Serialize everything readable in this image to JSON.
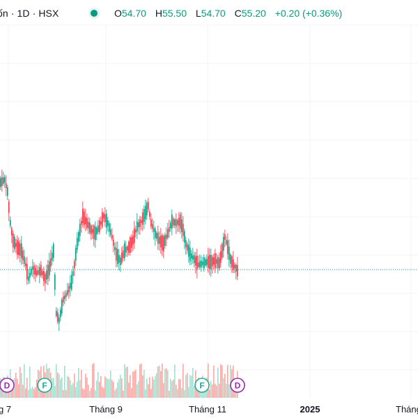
{
  "header": {
    "title": "ốn · 1D · HSX",
    "status_icon": "market-open-dot",
    "ohlc": {
      "o_key": "O",
      "o_val": "54.70",
      "h_key": "H",
      "h_val": "55.50",
      "l_key": "L",
      "l_val": "54.70",
      "c_key": "C",
      "c_val": "55.20",
      "change": "+0.20 (+0.36%)"
    }
  },
  "colors": {
    "up": "#089981",
    "down": "#f23645",
    "up_volume": "#a8dccf",
    "down_volume": "#f7a9a7",
    "grid": "#f0f3fa",
    "axis_text": "#131722",
    "dividend_marker": "#9c27b0",
    "earnings_marker": "#22ab94"
  },
  "x_axis": {
    "labels": [
      "g 7",
      "Tháng 9",
      "Tháng 11",
      "2025",
      "Tháng"
    ]
  },
  "events": [
    {
      "type": "dividend",
      "label": "D"
    },
    {
      "type": "earnings",
      "label": "F"
    },
    {
      "type": "earnings",
      "label": "F"
    },
    {
      "type": "dividend",
      "label": "D"
    }
  ],
  "chart_data": {
    "type": "candlestick",
    "last_close": 55.2,
    "ohlc_series": "daily",
    "y_range": [
      48.0,
      62.0
    ]
  }
}
